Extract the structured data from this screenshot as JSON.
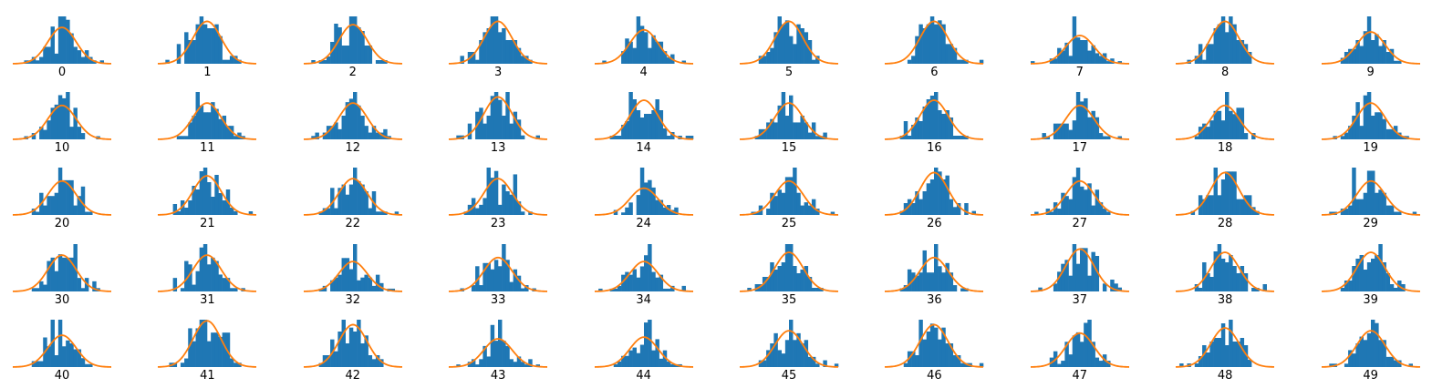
{
  "chart_data": {
    "type": "histogram-grid",
    "bar_color": "#1f77b4",
    "curve_color": "#ff7f0e",
    "axes_visible": false,
    "x_range": [
      -3.5,
      3.5
    ],
    "curve": "normal-density",
    "panels": [
      {
        "label": "0",
        "seed": 101
      },
      {
        "label": "1",
        "seed": 102
      },
      {
        "label": "2",
        "seed": 103
      },
      {
        "label": "3",
        "seed": 104
      },
      {
        "label": "4",
        "seed": 105
      },
      {
        "label": "5",
        "seed": 106
      },
      {
        "label": "6",
        "seed": 107
      },
      {
        "label": "7",
        "seed": 108
      },
      {
        "label": "8",
        "seed": 109
      },
      {
        "label": "9",
        "seed": 110
      },
      {
        "label": "10",
        "seed": 111
      },
      {
        "label": "11",
        "seed": 112
      },
      {
        "label": "12",
        "seed": 113
      },
      {
        "label": "13",
        "seed": 114
      },
      {
        "label": "14",
        "seed": 115
      },
      {
        "label": "15",
        "seed": 116
      },
      {
        "label": "16",
        "seed": 117
      },
      {
        "label": "17",
        "seed": 118
      },
      {
        "label": "18",
        "seed": 119
      },
      {
        "label": "19",
        "seed": 120
      },
      {
        "label": "20",
        "seed": 121
      },
      {
        "label": "21",
        "seed": 122
      },
      {
        "label": "22",
        "seed": 123
      },
      {
        "label": "23",
        "seed": 124
      },
      {
        "label": "24",
        "seed": 125
      },
      {
        "label": "25",
        "seed": 126
      },
      {
        "label": "26",
        "seed": 127
      },
      {
        "label": "27",
        "seed": 128
      },
      {
        "label": "28",
        "seed": 129
      },
      {
        "label": "29",
        "seed": 130
      },
      {
        "label": "30",
        "seed": 131
      },
      {
        "label": "31",
        "seed": 132
      },
      {
        "label": "32",
        "seed": 133
      },
      {
        "label": "33",
        "seed": 134
      },
      {
        "label": "34",
        "seed": 135
      },
      {
        "label": "35",
        "seed": 136
      },
      {
        "label": "36",
        "seed": 137
      },
      {
        "label": "37",
        "seed": 138
      },
      {
        "label": "38",
        "seed": 139
      },
      {
        "label": "39",
        "seed": 140
      },
      {
        "label": "40",
        "seed": 141
      },
      {
        "label": "41",
        "seed": 142
      },
      {
        "label": "42",
        "seed": 143
      },
      {
        "label": "43",
        "seed": 144
      },
      {
        "label": "44",
        "seed": 145
      },
      {
        "label": "45",
        "seed": 146
      },
      {
        "label": "46",
        "seed": 147
      },
      {
        "label": "47",
        "seed": 148
      },
      {
        "label": "48",
        "seed": 149
      },
      {
        "label": "49",
        "seed": 150
      }
    ]
  }
}
